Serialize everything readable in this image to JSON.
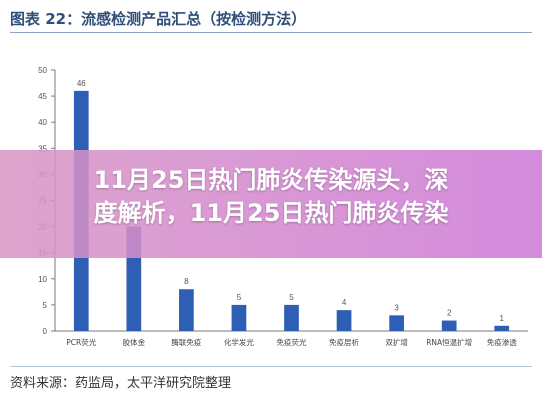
{
  "header": {
    "title": "图表 22：流感检测产品汇总（按检测方法）"
  },
  "overlay": {
    "line1": "11月25日热门肺炎传染源头，深",
    "line2": "度解析，11月25日热门肺炎传染"
  },
  "footer": {
    "source": "资料来源：药监局，太平洋研究院整理"
  },
  "colors": {
    "bar": "#2e5fb5",
    "axis": "#7a7a7a",
    "title": "#2f4f78"
  },
  "chart_data": {
    "type": "bar",
    "title": "",
    "xlabel": "",
    "ylabel": "",
    "ylim": [
      0,
      50
    ],
    "yticks": [
      0,
      5,
      10,
      15,
      20,
      25,
      30,
      35,
      40,
      45,
      50
    ],
    "grid": false,
    "categories": [
      "PCR荧光",
      "胶体金",
      "酶联免疫",
      "化学发光",
      "免疫荧光",
      "免疫层析",
      "双扩增",
      "RNA恒温扩增",
      "免疫渗透"
    ],
    "values": [
      46,
      20,
      8,
      5,
      5,
      4,
      3,
      2,
      1
    ]
  }
}
